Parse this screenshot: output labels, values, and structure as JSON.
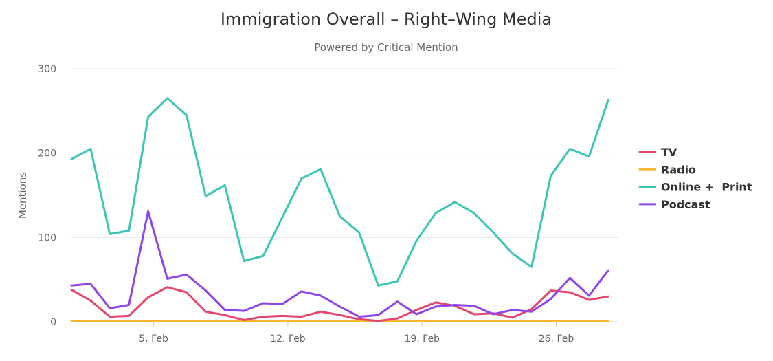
{
  "chart_data": {
    "type": "line",
    "title": "Immigration Overall – Right–Wing Media",
    "subtitle": "Powered by Critical Mention",
    "ylabel": "Mentions",
    "xlabel": "",
    "ylim": [
      0,
      300
    ],
    "yticks": [
      0,
      100,
      200,
      300
    ],
    "x": [
      "1. Feb",
      "2. Feb",
      "3. Feb",
      "4. Feb",
      "5. Feb",
      "6. Feb",
      "7. Feb",
      "8. Feb",
      "9. Feb",
      "10. Feb",
      "11. Feb",
      "12. Feb",
      "13. Feb",
      "14. Feb",
      "15. Feb",
      "16. Feb",
      "17. Feb",
      "18. Feb",
      "19. Feb",
      "20. Feb",
      "21. Feb",
      "22. Feb",
      "23. Feb",
      "24. Feb",
      "25. Feb",
      "26. Feb",
      "27. Feb",
      "28. Feb",
      "29. Feb"
    ],
    "xtick_labels": [
      "5. Feb",
      "12. Feb",
      "19. Feb",
      "26. Feb"
    ],
    "xtick_index": [
      4,
      11,
      18,
      25
    ],
    "grid": true,
    "legend_position": "right",
    "series": [
      {
        "name": "TV",
        "color": "#e5446d",
        "values": [
          38,
          25,
          6,
          7,
          29,
          41,
          35,
          12,
          8,
          2,
          6,
          7,
          6,
          12,
          8,
          3,
          1,
          4,
          14,
          23,
          19,
          9,
          10,
          5,
          15,
          37,
          35,
          26,
          30
        ]
      },
      {
        "name": "Radio",
        "color": "#f7b731",
        "values": [
          1,
          1,
          1,
          1,
          1,
          1,
          1,
          1,
          1,
          1,
          1,
          1,
          1,
          1,
          1,
          1,
          1,
          1,
          1,
          1,
          1,
          1,
          1,
          1,
          1,
          1,
          1,
          1,
          1
        ]
      },
      {
        "name": "Online +  Print",
        "color": "#3cc4b4",
        "values": [
          193,
          205,
          104,
          108,
          243,
          265,
          245,
          149,
          162,
          72,
          78,
          124,
          170,
          181,
          125,
          106,
          43,
          48,
          96,
          129,
          142,
          129,
          106,
          81,
          65,
          173,
          205,
          196,
          263
        ]
      },
      {
        "name": "Podcast",
        "color": "#8e44e8",
        "values": [
          43,
          45,
          16,
          20,
          131,
          51,
          56,
          37,
          14,
          13,
          22,
          21,
          36,
          31,
          18,
          6,
          8,
          24,
          9,
          18,
          20,
          19,
          9,
          14,
          12,
          27,
          52,
          31,
          61
        ]
      }
    ]
  }
}
